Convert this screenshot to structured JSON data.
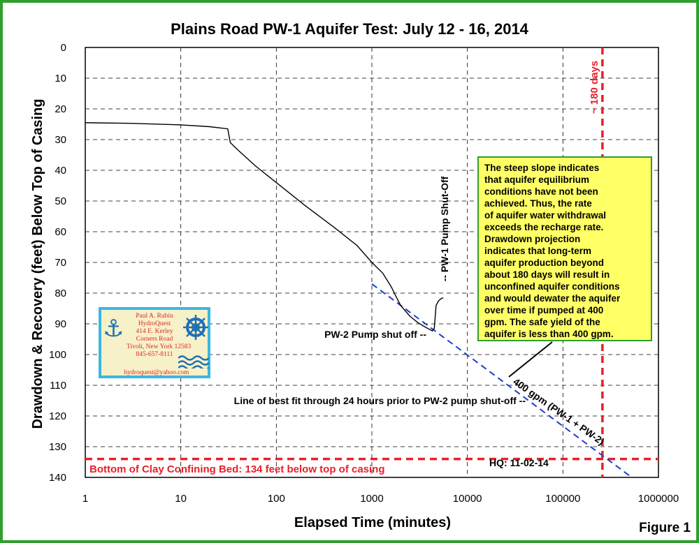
{
  "chart_data": {
    "type": "line",
    "title": "Plains Road PW-1 Aquifer Test: July 12 - 16, 2014",
    "xlabel": "Elapsed Time (minutes)",
    "ylabel": "Drawdown & Recovery (feet) Below Top of Casing",
    "x_scale": "log",
    "xlim": [
      1,
      1000000
    ],
    "ylim": [
      0,
      140
    ],
    "y_inverted": true,
    "grid": true,
    "x_ticks": [
      "1",
      "10",
      "100",
      "1000",
      "10000",
      "100000",
      "1000000"
    ],
    "y_ticks": [
      "0",
      "10",
      "20",
      "30",
      "40",
      "50",
      "60",
      "70",
      "80",
      "90",
      "100",
      "110",
      "120",
      "130",
      "140"
    ],
    "series": [
      {
        "x": [
          1,
          3,
          10,
          20,
          31,
          33,
          40,
          60,
          100,
          200,
          400,
          700,
          1000,
          1300,
          1600,
          1750,
          2000,
          2500,
          3000,
          3500,
          4000,
          4300,
          4500,
          4700,
          5000,
          5300,
          5600
        ],
        "y": [
          24.5,
          24.7,
          25.2,
          25.8,
          26.5,
          31,
          33.5,
          38.5,
          44,
          51.5,
          58.5,
          64.5,
          70,
          73.5,
          78,
          80.5,
          84,
          87.5,
          89.5,
          90.8,
          91.8,
          92.3,
          91.5,
          84,
          82.5,
          81.8,
          81.5
        ]
      }
    ],
    "best_fit_line": {
      "x": [
        1000,
        500000
      ],
      "y": [
        77,
        139.5
      ],
      "color": "#1a3fcc",
      "label": "400 gpm (PW-1 + PW-2)"
    },
    "confining_bed": {
      "y": 134,
      "label": "Bottom of Clay Confining Bed: 134 feet below top of casing",
      "color": "#e8202a"
    },
    "day_180": {
      "x": 259200,
      "label": "~ 180 days",
      "color": "#e8202a"
    },
    "annotations": {
      "pw1": "-- PW-1 Pump Shut-Off",
      "pw2": "PW-2 Pump shut off --",
      "best_fit": "Line of best fit through 24 hours prior to PW-2 pump shut-off --",
      "hq": "HQ: 11-02-14"
    },
    "figure_label": "Figure 1"
  },
  "note_box": {
    "lines": [
      "The steep slope indicates",
      "that aquifer equilibrium",
      "conditions have not been",
      "achieved.   Thus, the rate",
      "of aquifer water withdrawal",
      "exceeds the recharge rate.",
      "Drawdown projection",
      "indicates that long-term",
      "aquifer production beyond",
      "about 180 days will result in",
      "unconfined aquifer conditions",
      "and would dewater the aquifer",
      "over time if pumped at 400",
      "gpm.   The safe yield of the",
      "aquifer is less than 400 gpm."
    ]
  },
  "business_card": {
    "lines": [
      "Paul A. Rubin",
      "HydroQuest",
      "414 E. Kerley",
      "Corners Road",
      "Tivoli, New York 12583",
      "845-657-8111"
    ],
    "email": "hydroquest@yahoo.com"
  },
  "colors": {
    "frame": "#2f9e2f",
    "note_bg": "#ffff66",
    "card_border": "#3ab7e0",
    "red": "#e8202a",
    "blue": "#1a3fcc"
  }
}
